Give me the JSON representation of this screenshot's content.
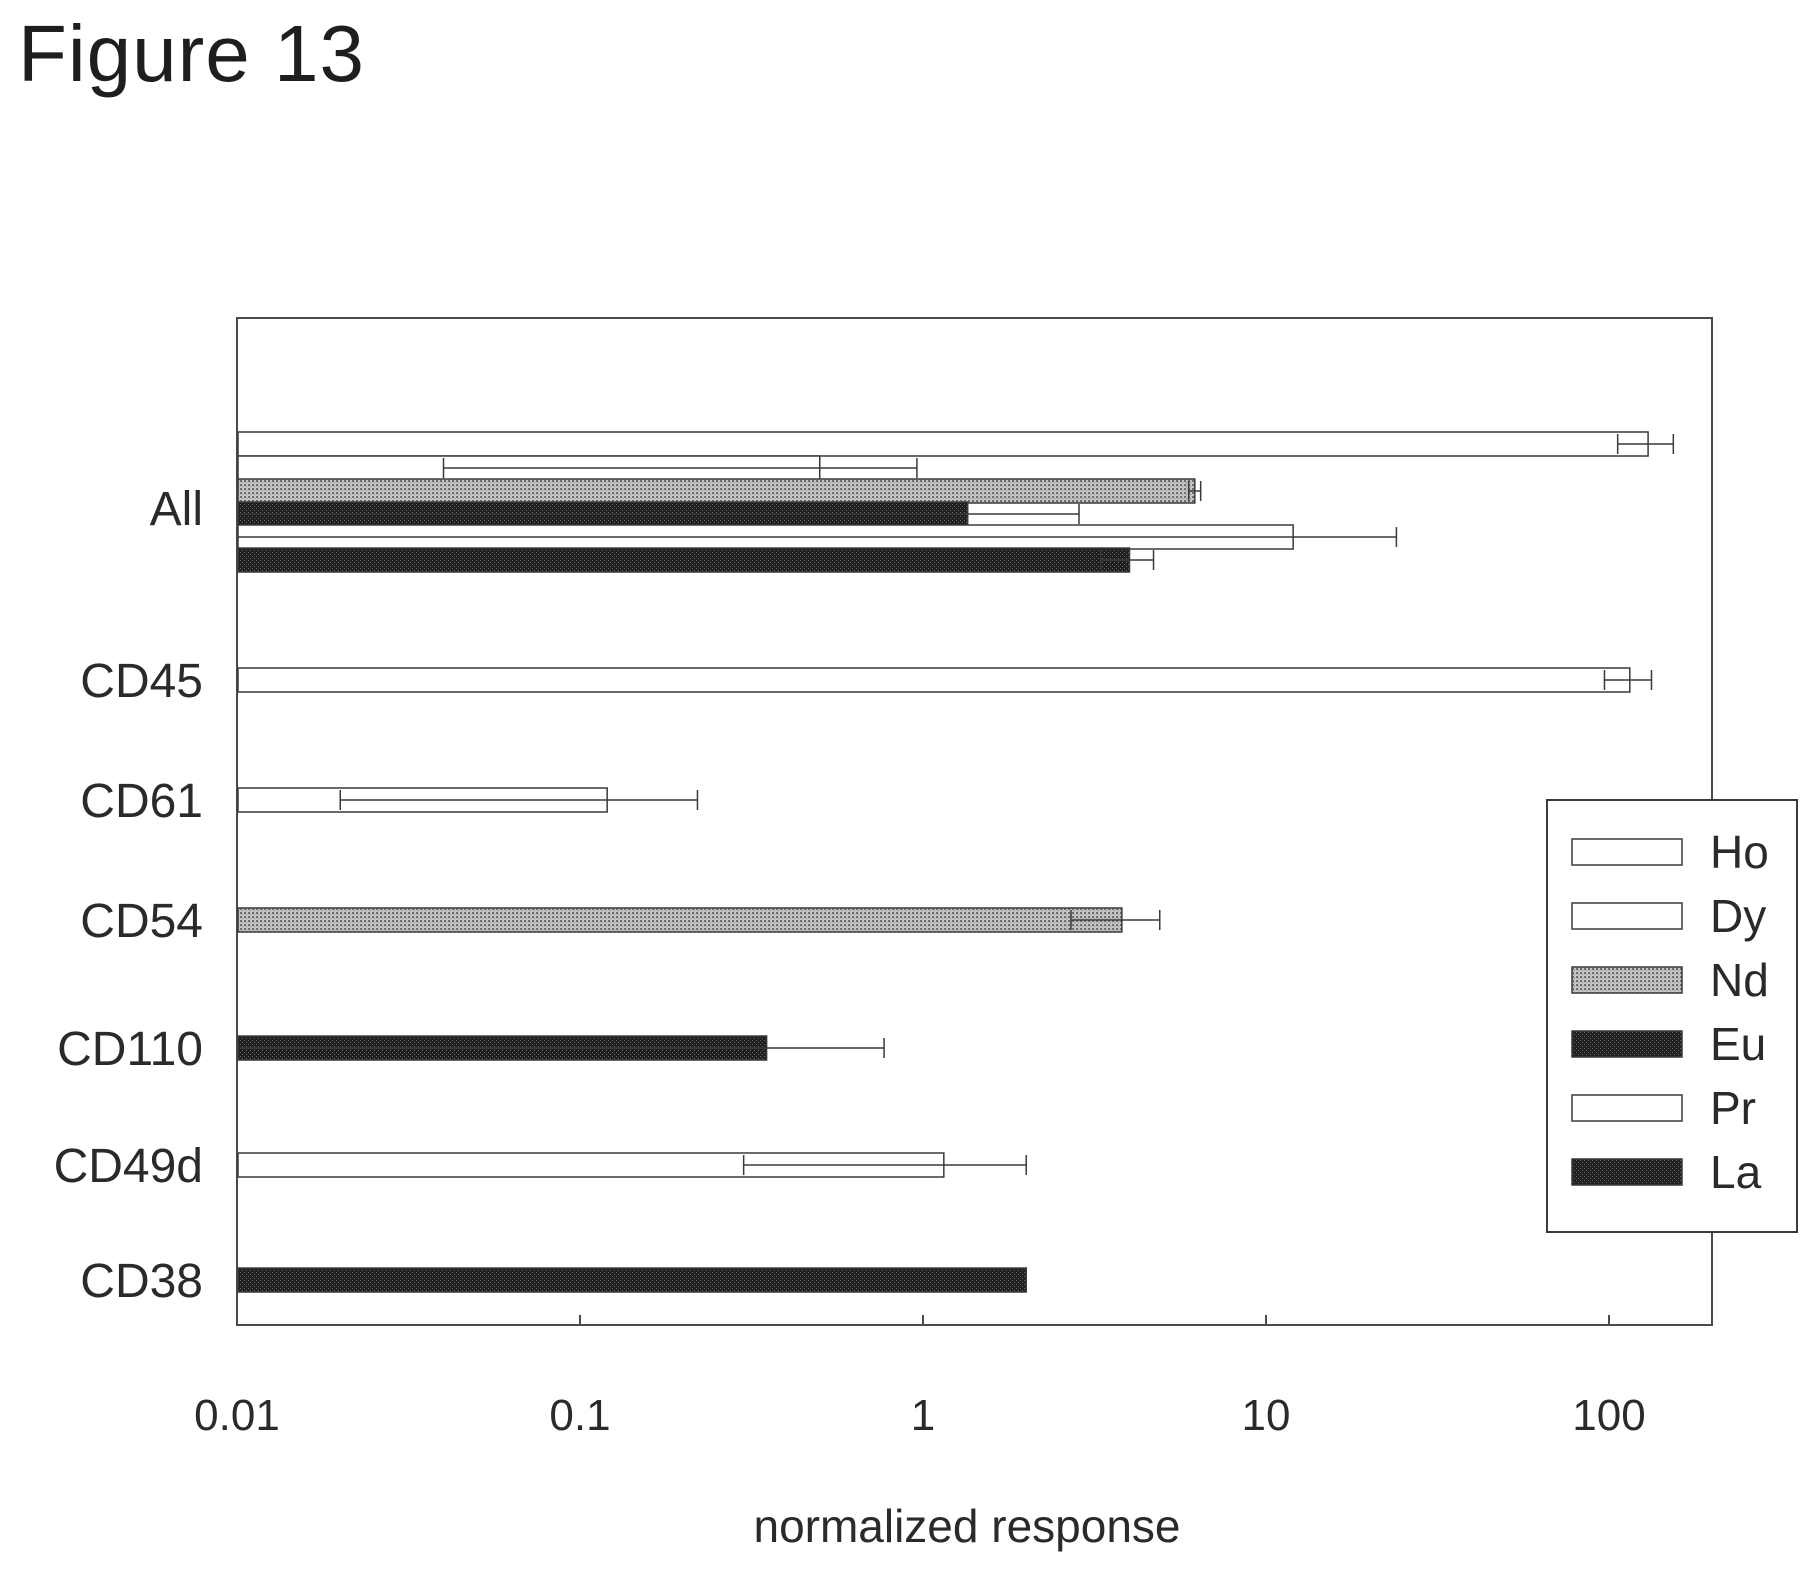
{
  "figure": {
    "title": "Figure 13"
  },
  "chart_data": {
    "type": "bar",
    "orientation": "horizontal",
    "x_scale": "log",
    "xlim": [
      0.01,
      200
    ],
    "xticks": [
      {
        "value": 0.01,
        "label": "0.01"
      },
      {
        "value": 0.1,
        "label": "0.1"
      },
      {
        "value": 1,
        "label": "1"
      },
      {
        "value": 10,
        "label": "10"
      },
      {
        "value": 100,
        "label": "100"
      }
    ],
    "xlabel": "normalized response",
    "ylabel": "",
    "title": "",
    "grid": false,
    "legend_position": "right",
    "categories": [
      "All",
      "CD45",
      "CD61",
      "CD54",
      "CD110",
      "CD49d",
      "CD38"
    ],
    "series": [
      {
        "name": "Ho",
        "fill": "white",
        "values": [
          130,
          115,
          null,
          null,
          null,
          null,
          null
        ],
        "errors": [
          24,
          18,
          null,
          null,
          null,
          null,
          null
        ]
      },
      {
        "name": "Dy",
        "fill": "white",
        "values": [
          0.5,
          null,
          0.12,
          null,
          null,
          null,
          null
        ],
        "errors": [
          0.46,
          null,
          0.1,
          null,
          null,
          null,
          null
        ]
      },
      {
        "name": "Nd",
        "fill": "hatch",
        "values": [
          6.2,
          null,
          null,
          3.8,
          null,
          null,
          null
        ],
        "errors": [
          0.25,
          null,
          null,
          1.1,
          null,
          null,
          null
        ]
      },
      {
        "name": "Eu",
        "fill": "dark",
        "values": [
          1.35,
          null,
          null,
          null,
          0.35,
          null,
          null
        ],
        "errors": [
          1.5,
          null,
          null,
          null,
          0.42,
          null,
          null
        ]
      },
      {
        "name": "Pr",
        "fill": "white",
        "values": [
          12,
          null,
          null,
          null,
          null,
          1.15,
          null
        ],
        "errors": [
          12,
          null,
          null,
          null,
          null,
          0.85,
          null
        ]
      },
      {
        "name": "La",
        "fill": "dark",
        "values": [
          4.0,
          null,
          null,
          null,
          null,
          null,
          2.0
        ],
        "errors": [
          0.7,
          null,
          null,
          null,
          null,
          null,
          null
        ]
      }
    ]
  }
}
